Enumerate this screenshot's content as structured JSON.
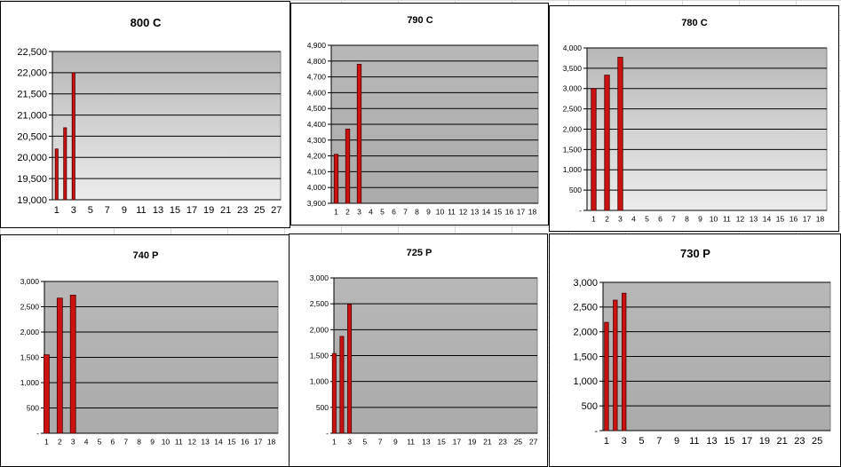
{
  "colors": {
    "bar": "#cc1111",
    "bar_edge": "#4a0000",
    "plot_top": "#b8b8b8",
    "plot_bottom": "#ececec",
    "plot_bottom_bar": "#ababab",
    "grid": "#000000"
  },
  "chart_data": [
    {
      "type": "bar",
      "title": "800 C",
      "categories": [
        "1",
        "2",
        "3"
      ],
      "values": [
        20200,
        20700,
        22000
      ],
      "ylim": [
        19000,
        22500
      ],
      "yticks": [
        "19,000",
        "19,500",
        "20,000",
        "20,500",
        "21,000",
        "21,500",
        "22,000",
        "22,500"
      ],
      "xticks": [
        "1",
        "3",
        "5",
        "7",
        "9",
        "11",
        "13",
        "15",
        "17",
        "19",
        "21",
        "23",
        "25",
        "27"
      ],
      "x_count": 27,
      "grid": true,
      "gradient": true
    },
    {
      "type": "bar",
      "title": "790 C",
      "categories": [
        "1",
        "2",
        "3"
      ],
      "values": [
        4210,
        4370,
        4780
      ],
      "ylim": [
        3900,
        4900
      ],
      "yticks": [
        "3,900",
        "4,000",
        "4,100",
        "4,200",
        "4,300",
        "4,400",
        "4,500",
        "4,600",
        "4,700",
        "4,800",
        "4,900"
      ],
      "xticks": [
        "1",
        "2",
        "3",
        "4",
        "5",
        "6",
        "7",
        "8",
        "9",
        "10",
        "11",
        "12",
        "13",
        "14",
        "15",
        "16",
        "17",
        "18"
      ],
      "x_count": 18,
      "grid": true,
      "gradient": false
    },
    {
      "type": "bar",
      "title": "780 C",
      "categories": [
        "1",
        "2",
        "3"
      ],
      "values": [
        3000,
        3330,
        3770
      ],
      "ylim": [
        0,
        4000
      ],
      "yticks": [
        "-",
        "500",
        "1,000",
        "1,500",
        "2,000",
        "2,500",
        "3,000",
        "3,500",
        "4,000"
      ],
      "xticks": [
        "1",
        "2",
        "3",
        "4",
        "5",
        "6",
        "7",
        "8",
        "9",
        "10",
        "11",
        "12",
        "13",
        "14",
        "15",
        "16",
        "17",
        "18"
      ],
      "x_count": 18,
      "grid": true,
      "gradient": true
    },
    {
      "type": "bar",
      "title": "740 P",
      "categories": [
        "1",
        "2",
        "3"
      ],
      "values": [
        1550,
        2670,
        2730
      ],
      "ylim": [
        0,
        3000
      ],
      "yticks": [
        "-",
        "500",
        "1,000",
        "1,500",
        "2,000",
        "2,500",
        "3,000"
      ],
      "xticks": [
        "1",
        "2",
        "3",
        "4",
        "5",
        "6",
        "7",
        "8",
        "9",
        "10",
        "11",
        "12",
        "13",
        "14",
        "15",
        "16",
        "17",
        "18"
      ],
      "x_count": 18,
      "grid": true,
      "gradient": false
    },
    {
      "type": "bar",
      "title": "725 P",
      "categories": [
        "1",
        "2",
        "3"
      ],
      "values": [
        1540,
        1870,
        2490
      ],
      "ylim": [
        0,
        3000
      ],
      "yticks": [
        "-",
        "500",
        "1,000",
        "1,500",
        "2,000",
        "2,500",
        "3,000"
      ],
      "xticks": [
        "1",
        "3",
        "5",
        "7",
        "9",
        "11",
        "13",
        "15",
        "17",
        "19",
        "21",
        "23",
        "25",
        "27"
      ],
      "x_count": 27,
      "grid": true,
      "gradient": false
    },
    {
      "type": "bar",
      "title": "730 P",
      "categories": [
        "1",
        "2",
        "3"
      ],
      "values": [
        2190,
        2640,
        2780
      ],
      "ylim": [
        0,
        3000
      ],
      "yticks": [
        "-",
        "500",
        "1,000",
        "1,500",
        "2,000",
        "2,500",
        "3,000"
      ],
      "xticks": [
        "1",
        "3",
        "5",
        "7",
        "9",
        "11",
        "13",
        "15",
        "17",
        "19",
        "21",
        "23",
        "25"
      ],
      "x_count": 26,
      "grid": true,
      "gradient": false
    }
  ]
}
